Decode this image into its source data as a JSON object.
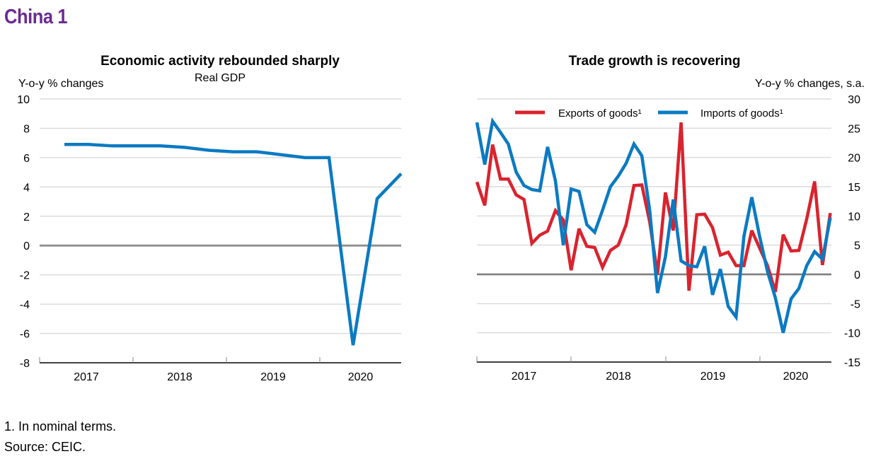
{
  "page": {
    "title": "China 1",
    "footnote": "1. In nominal terms.",
    "source": "Source: CEIC."
  },
  "chart_data": [
    {
      "type": "line",
      "title": "Economic activity rebounded sharply",
      "subtitle": "Real GDP",
      "ylabel": "Y-o-y % changes",
      "xlabel": "",
      "ylim": [
        -8,
        10
      ],
      "yticks": [
        10,
        8,
        6,
        4,
        2,
        0,
        -2,
        -4,
        -6,
        -8
      ],
      "xticklabels": [
        "2017",
        "2018",
        "2019",
        "2020"
      ],
      "frequency": "quarterly",
      "x": [
        "2017Q1",
        "2017Q2",
        "2017Q3",
        "2017Q4",
        "2018Q1",
        "2018Q2",
        "2018Q3",
        "2018Q4",
        "2019Q1",
        "2019Q2",
        "2019Q3",
        "2019Q4",
        "2020Q1",
        "2020Q2",
        "2020Q3"
      ],
      "series": [
        {
          "name": "Real GDP",
          "color": "#0b7ac2",
          "values": [
            6.9,
            6.9,
            6.8,
            6.8,
            6.8,
            6.7,
            6.5,
            6.4,
            6.4,
            6.2,
            6.0,
            6.0,
            -6.8,
            3.2,
            4.9
          ]
        }
      ],
      "grid": true,
      "legend": "none"
    },
    {
      "type": "line",
      "title": "Trade growth is recovering",
      "ylabel": "Y-o-y % changes, s.a.",
      "xlabel": "",
      "ylim": [
        -15,
        30
      ],
      "yticks": [
        30,
        25,
        20,
        15,
        10,
        5,
        0,
        -5,
        -10,
        -15
      ],
      "xticklabels": [
        "2017",
        "2018",
        "2019",
        "2020"
      ],
      "frequency": "monthly",
      "x_start": "2017-01",
      "x_end": "2020-10",
      "series": [
        {
          "name": "Exports of goods¹",
          "color": "#d9232e",
          "values": [
            15.8,
            11.8,
            22.2,
            16.3,
            16.3,
            13.6,
            12.8,
            5.3,
            6.7,
            7.4,
            10.9,
            9.3,
            0.7,
            7.8,
            4.8,
            4.6,
            1.2,
            4.1,
            5.0,
            8.5,
            15.2,
            15.3,
            9.0,
            0.0,
            14.0,
            7.5,
            26.0,
            -2.8,
            10.2,
            10.3,
            8.0,
            3.3,
            3.8,
            1.5,
            1.5,
            7.5,
            4.5,
            1.5,
            -3.0,
            6.8,
            4.0,
            4.1,
            9.5,
            15.9,
            1.6,
            10.5
          ]
        },
        {
          "name": "Imports of goods¹",
          "color": "#0b7ac2",
          "values": [
            26.0,
            18.8,
            26.2,
            24.3,
            22.3,
            17.5,
            15.2,
            14.5,
            14.3,
            21.8,
            16.0,
            5.0,
            14.6,
            14.2,
            8.5,
            7.2,
            11.0,
            15.0,
            16.8,
            19.0,
            22.3,
            20.3,
            11.0,
            -3.2,
            3.0,
            12.8,
            2.3,
            1.5,
            1.3,
            4.8,
            -3.5,
            0.9,
            -5.5,
            -7.3,
            6.5,
            13.2,
            6.5,
            0.5,
            -4.0,
            -10.0,
            -4.2,
            -2.4,
            1.5,
            3.9,
            2.6,
            9.7
          ]
        }
      ],
      "grid": true,
      "legend": "top"
    }
  ]
}
